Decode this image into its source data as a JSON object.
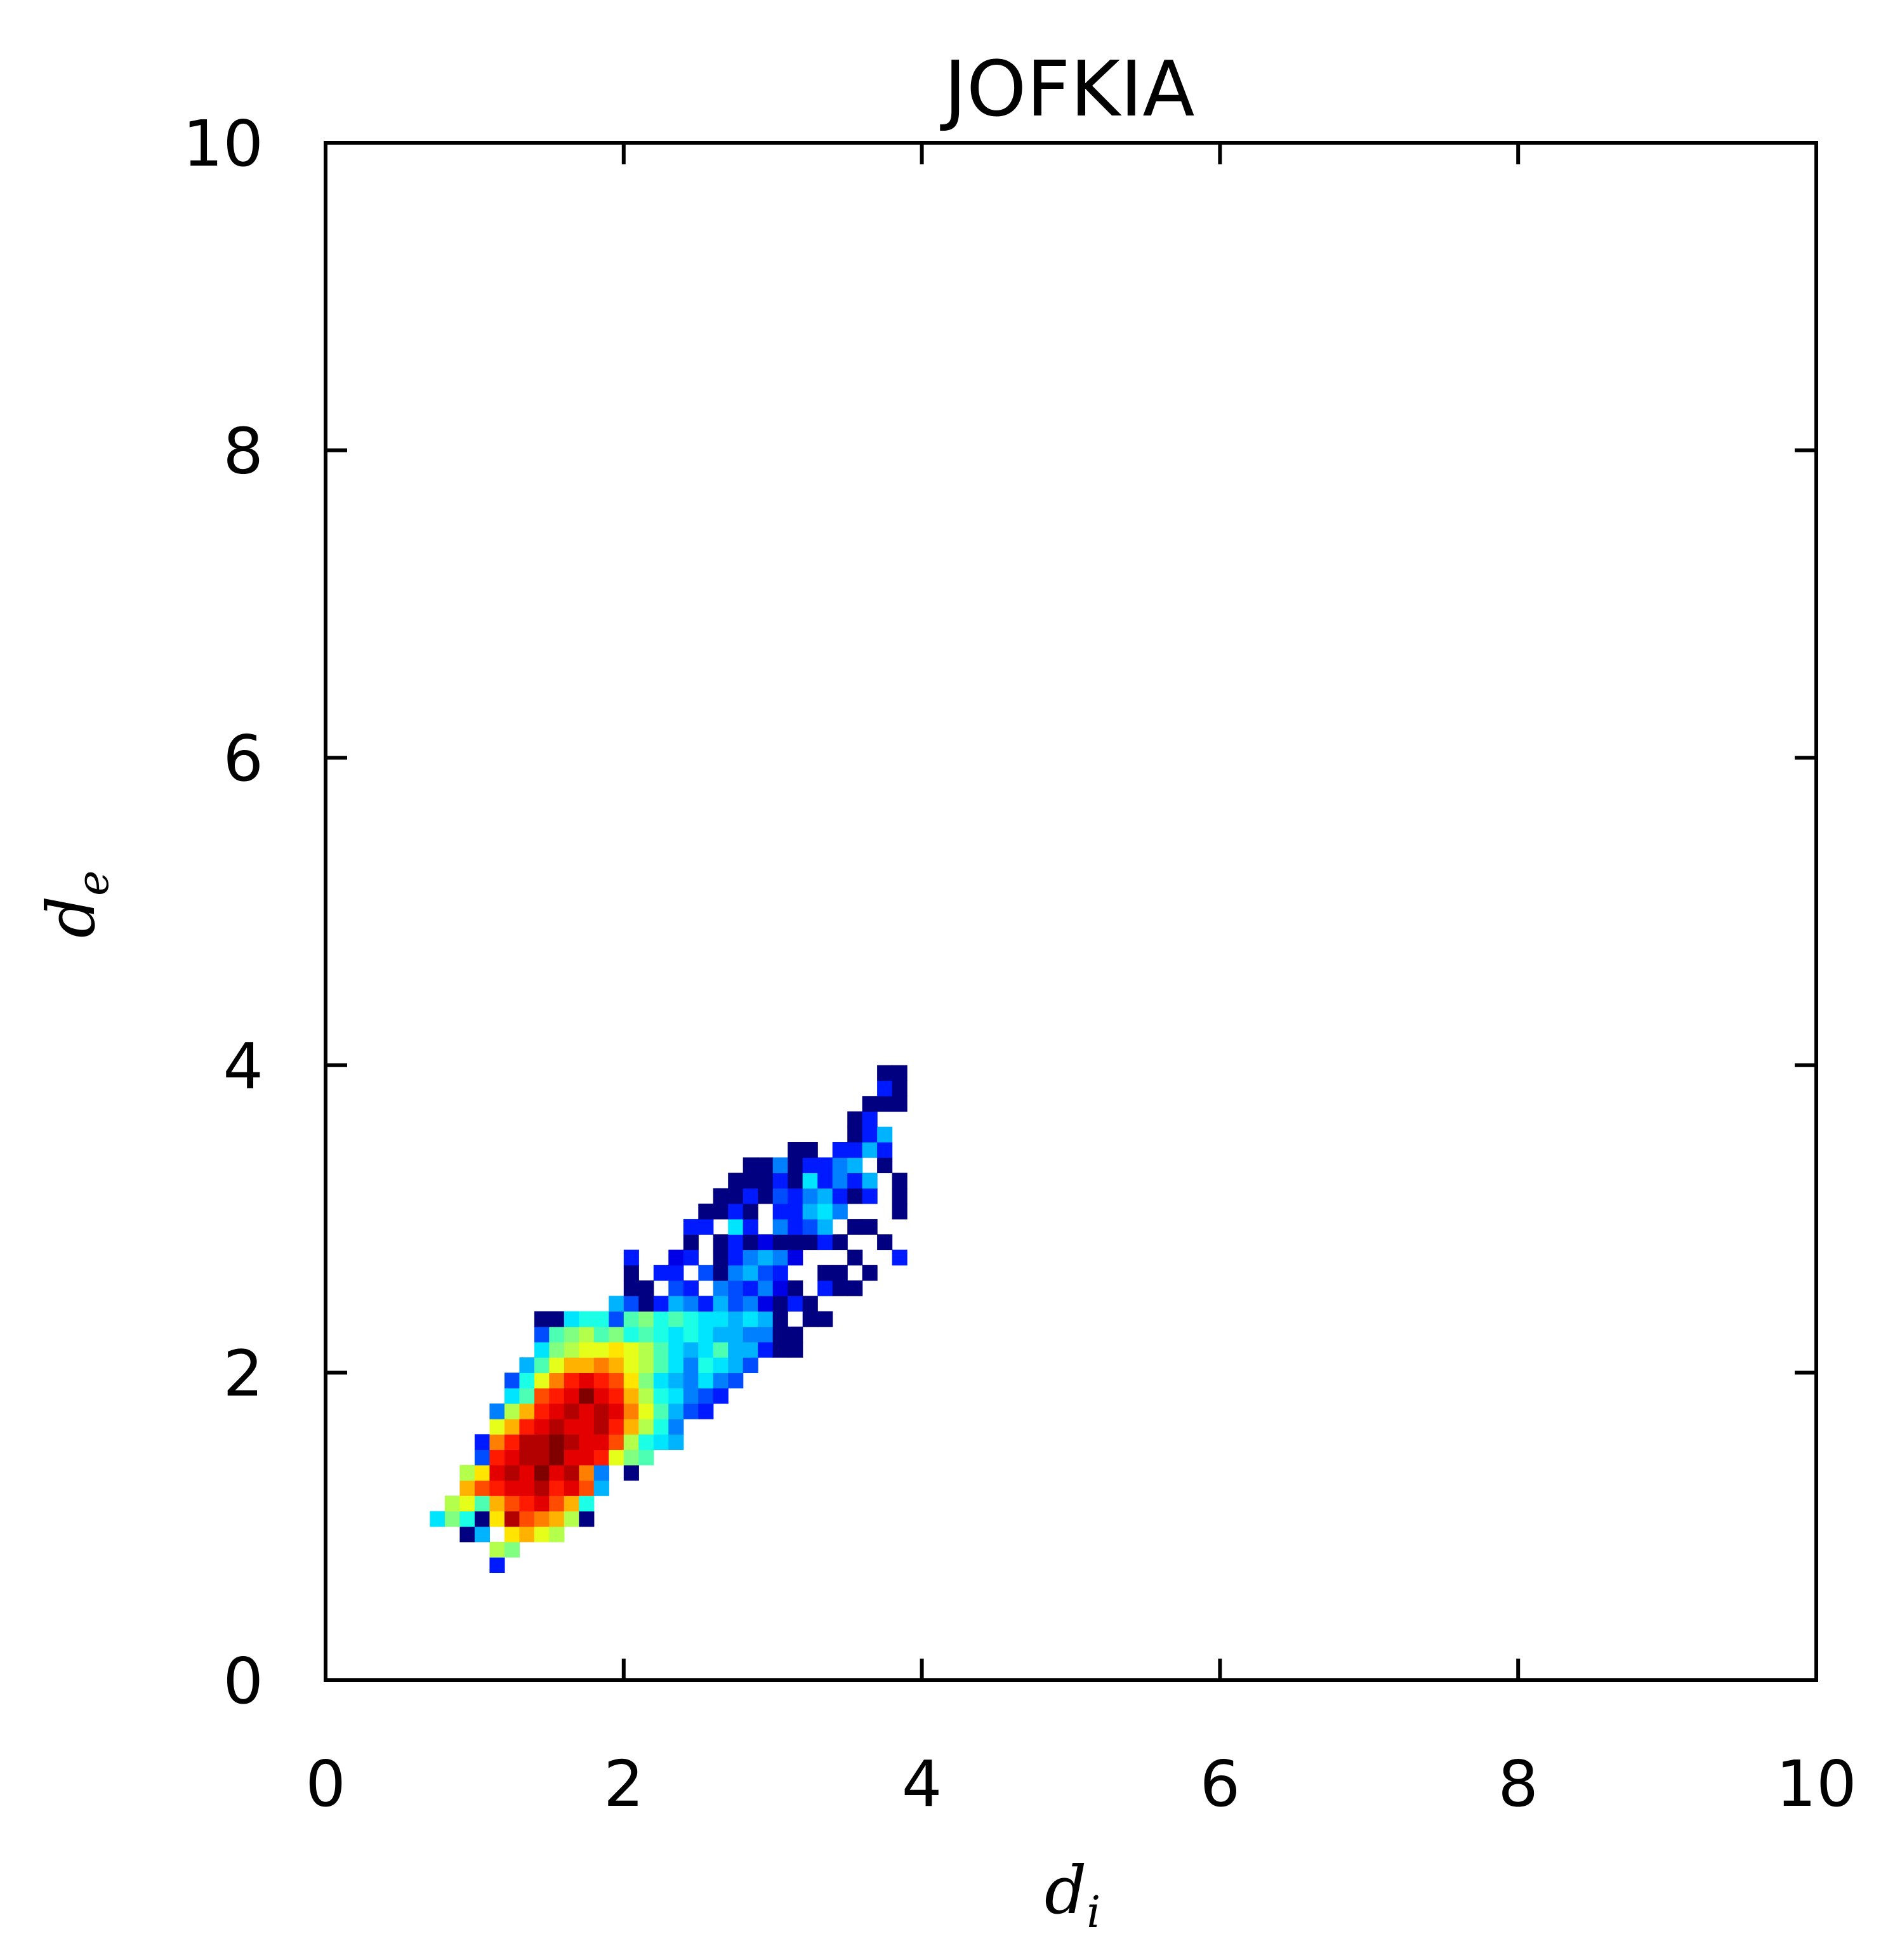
{
  "chart_data": {
    "type": "heatmap",
    "title": "JOFKIA",
    "xlabel": {
      "base": "d",
      "sub": "i"
    },
    "ylabel": {
      "base": "d",
      "sub": "e"
    },
    "xlim": [
      0,
      10
    ],
    "ylim": [
      0,
      10
    ],
    "xticks": [
      "0",
      "2",
      "4",
      "6",
      "8",
      "10"
    ],
    "yticks": [
      "0",
      "2",
      "4",
      "6",
      "8",
      "10"
    ],
    "grid": false,
    "colormap": "jet",
    "bin_size": 0.1,
    "cell_format": "[d_i, d_e, relative_density]",
    "cells": [
      [
        1.15,
        0.75,
        0.15
      ],
      [
        1.15,
        0.85,
        0.55
      ],
      [
        1.25,
        0.85,
        0.5
      ],
      [
        0.95,
        0.95,
        0.0
      ],
      [
        1.05,
        0.95,
        0.3
      ],
      [
        1.25,
        0.95,
        0.65
      ],
      [
        1.35,
        0.95,
        0.7
      ],
      [
        1.45,
        0.95,
        0.6
      ],
      [
        1.55,
        0.95,
        0.55
      ],
      [
        0.75,
        1.05,
        0.35
      ],
      [
        0.85,
        1.05,
        0.5
      ],
      [
        0.95,
        1.05,
        0.4
      ],
      [
        1.05,
        1.05,
        0.0
      ],
      [
        1.15,
        1.05,
        0.65
      ],
      [
        1.25,
        1.05,
        0.95
      ],
      [
        1.35,
        1.05,
        0.8
      ],
      [
        1.45,
        1.05,
        0.75
      ],
      [
        1.55,
        1.05,
        0.7
      ],
      [
        1.65,
        1.05,
        0.55
      ],
      [
        1.75,
        1.05,
        0.0
      ],
      [
        0.85,
        1.15,
        0.55
      ],
      [
        0.95,
        1.15,
        0.6
      ],
      [
        1.05,
        1.15,
        0.45
      ],
      [
        1.15,
        1.15,
        0.7
      ],
      [
        1.25,
        1.15,
        0.8
      ],
      [
        1.35,
        1.15,
        0.85
      ],
      [
        1.45,
        1.15,
        0.9
      ],
      [
        1.55,
        1.15,
        0.8
      ],
      [
        1.65,
        1.15,
        0.7
      ],
      [
        1.75,
        1.15,
        0.4
      ],
      [
        0.95,
        1.25,
        0.7
      ],
      [
        1.05,
        1.25,
        0.8
      ],
      [
        1.15,
        1.25,
        0.85
      ],
      [
        1.25,
        1.25,
        0.9
      ],
      [
        1.35,
        1.25,
        0.9
      ],
      [
        1.45,
        1.25,
        0.95
      ],
      [
        1.55,
        1.25,
        0.85
      ],
      [
        1.65,
        1.25,
        0.9
      ],
      [
        1.75,
        1.25,
        0.8
      ],
      [
        1.85,
        1.25,
        0.3
      ],
      [
        0.95,
        1.35,
        0.55
      ],
      [
        1.05,
        1.35,
        0.65
      ],
      [
        1.15,
        1.35,
        0.9
      ],
      [
        1.25,
        1.35,
        0.95
      ],
      [
        1.35,
        1.35,
        0.9
      ],
      [
        1.45,
        1.35,
        1.0
      ],
      [
        1.55,
        1.35,
        0.9
      ],
      [
        1.65,
        1.35,
        0.95
      ],
      [
        1.75,
        1.35,
        0.75
      ],
      [
        1.85,
        1.35,
        0.25
      ],
      [
        2.05,
        1.35,
        0.0
      ],
      [
        1.05,
        1.45,
        0.2
      ],
      [
        1.15,
        1.45,
        0.85
      ],
      [
        1.25,
        1.45,
        0.9
      ],
      [
        1.35,
        1.45,
        0.95
      ],
      [
        1.45,
        1.45,
        0.95
      ],
      [
        1.55,
        1.45,
        1.0
      ],
      [
        1.65,
        1.45,
        0.9
      ],
      [
        1.75,
        1.45,
        0.9
      ],
      [
        1.85,
        1.45,
        0.85
      ],
      [
        1.95,
        1.45,
        0.6
      ],
      [
        2.05,
        1.45,
        0.5
      ],
      [
        2.15,
        1.45,
        0.45
      ],
      [
        1.05,
        1.55,
        0.15
      ],
      [
        1.15,
        1.55,
        0.75
      ],
      [
        1.25,
        1.55,
        0.85
      ],
      [
        1.35,
        1.55,
        0.95
      ],
      [
        1.45,
        1.55,
        0.95
      ],
      [
        1.55,
        1.55,
        1.0
      ],
      [
        1.65,
        1.55,
        0.95
      ],
      [
        1.75,
        1.55,
        0.9
      ],
      [
        1.85,
        1.55,
        0.9
      ],
      [
        1.95,
        1.55,
        0.8
      ],
      [
        2.05,
        1.55,
        0.55
      ],
      [
        2.15,
        1.55,
        0.4
      ],
      [
        2.25,
        1.55,
        0.35
      ],
      [
        2.35,
        1.55,
        0.3
      ],
      [
        1.15,
        1.65,
        0.6
      ],
      [
        1.25,
        1.65,
        0.7
      ],
      [
        1.35,
        1.65,
        0.85
      ],
      [
        1.45,
        1.65,
        0.9
      ],
      [
        1.55,
        1.65,
        0.95
      ],
      [
        1.65,
        1.65,
        0.9
      ],
      [
        1.75,
        1.65,
        0.9
      ],
      [
        1.85,
        1.65,
        0.95
      ],
      [
        1.95,
        1.65,
        0.85
      ],
      [
        2.05,
        1.65,
        0.7
      ],
      [
        2.15,
        1.65,
        0.55
      ],
      [
        2.25,
        1.65,
        0.4
      ],
      [
        2.35,
        1.65,
        0.25
      ],
      [
        1.15,
        1.75,
        0.25
      ],
      [
        1.25,
        1.75,
        0.55
      ],
      [
        1.35,
        1.75,
        0.7
      ],
      [
        1.45,
        1.75,
        0.85
      ],
      [
        1.55,
        1.75,
        0.9
      ],
      [
        1.65,
        1.75,
        0.95
      ],
      [
        1.75,
        1.75,
        0.9
      ],
      [
        1.85,
        1.75,
        0.95
      ],
      [
        1.95,
        1.75,
        0.9
      ],
      [
        2.05,
        1.75,
        0.75
      ],
      [
        2.15,
        1.75,
        0.6
      ],
      [
        2.25,
        1.75,
        0.45
      ],
      [
        2.35,
        1.75,
        0.3
      ],
      [
        2.45,
        1.75,
        0.2
      ],
      [
        2.55,
        1.75,
        0.15
      ],
      [
        1.25,
        1.85,
        0.35
      ],
      [
        1.35,
        1.85,
        0.45
      ],
      [
        1.45,
        1.85,
        0.8
      ],
      [
        1.55,
        1.85,
        0.85
      ],
      [
        1.65,
        1.85,
        0.9
      ],
      [
        1.75,
        1.85,
        1.0
      ],
      [
        1.85,
        1.85,
        0.9
      ],
      [
        1.95,
        1.85,
        0.85
      ],
      [
        2.05,
        1.85,
        0.7
      ],
      [
        2.15,
        1.85,
        0.55
      ],
      [
        2.25,
        1.85,
        0.4
      ],
      [
        2.35,
        1.85,
        0.35
      ],
      [
        2.45,
        1.85,
        0.25
      ],
      [
        2.55,
        1.85,
        0.2
      ],
      [
        2.65,
        1.85,
        0.15
      ],
      [
        1.25,
        1.95,
        0.2
      ],
      [
        1.35,
        1.95,
        0.4
      ],
      [
        1.45,
        1.95,
        0.6
      ],
      [
        1.55,
        1.95,
        0.75
      ],
      [
        1.65,
        1.95,
        0.85
      ],
      [
        1.75,
        1.95,
        0.9
      ],
      [
        1.85,
        1.95,
        0.85
      ],
      [
        1.95,
        1.95,
        0.8
      ],
      [
        2.05,
        1.95,
        0.65
      ],
      [
        2.15,
        1.95,
        0.5
      ],
      [
        2.25,
        1.95,
        0.35
      ],
      [
        2.35,
        1.95,
        0.3
      ],
      [
        2.45,
        1.95,
        0.25
      ],
      [
        2.55,
        1.95,
        0.35
      ],
      [
        2.65,
        1.95,
        0.25
      ],
      [
        2.75,
        1.95,
        0.2
      ],
      [
        1.35,
        2.05,
        0.3
      ],
      [
        1.45,
        2.05,
        0.45
      ],
      [
        1.55,
        2.05,
        0.6
      ],
      [
        1.65,
        2.05,
        0.7
      ],
      [
        1.75,
        2.05,
        0.7
      ],
      [
        1.85,
        2.05,
        0.75
      ],
      [
        1.95,
        2.05,
        0.7
      ],
      [
        2.05,
        2.05,
        0.6
      ],
      [
        2.15,
        2.05,
        0.55
      ],
      [
        2.25,
        2.05,
        0.45
      ],
      [
        2.35,
        2.05,
        0.35
      ],
      [
        2.45,
        2.05,
        0.25
      ],
      [
        2.55,
        2.05,
        0.4
      ],
      [
        2.65,
        2.05,
        0.35
      ],
      [
        2.75,
        2.05,
        0.3
      ],
      [
        2.85,
        2.05,
        0.2
      ],
      [
        1.45,
        2.15,
        0.35
      ],
      [
        1.55,
        2.15,
        0.5
      ],
      [
        1.65,
        2.15,
        0.55
      ],
      [
        1.75,
        2.15,
        0.6
      ],
      [
        1.85,
        2.15,
        0.6
      ],
      [
        1.95,
        2.15,
        0.65
      ],
      [
        2.05,
        2.15,
        0.6
      ],
      [
        2.15,
        2.15,
        0.55
      ],
      [
        2.25,
        2.15,
        0.45
      ],
      [
        2.35,
        2.15,
        0.35
      ],
      [
        2.45,
        2.15,
        0.3
      ],
      [
        2.55,
        2.15,
        0.35
      ],
      [
        2.65,
        2.15,
        0.45
      ],
      [
        2.75,
        2.15,
        0.3
      ],
      [
        2.85,
        2.15,
        0.3
      ],
      [
        2.95,
        2.15,
        0.15
      ],
      [
        3.05,
        2.15,
        0.0
      ],
      [
        3.15,
        2.15,
        0.0
      ],
      [
        1.45,
        2.25,
        0.2
      ],
      [
        1.55,
        2.25,
        0.45
      ],
      [
        1.65,
        2.25,
        0.5
      ],
      [
        1.75,
        2.25,
        0.55
      ],
      [
        1.85,
        2.25,
        0.45
      ],
      [
        1.95,
        2.25,
        0.5
      ],
      [
        2.05,
        2.25,
        0.4
      ],
      [
        2.15,
        2.25,
        0.45
      ],
      [
        2.25,
        2.25,
        0.4
      ],
      [
        2.35,
        2.25,
        0.35
      ],
      [
        2.45,
        2.25,
        0.4
      ],
      [
        2.55,
        2.25,
        0.35
      ],
      [
        2.65,
        2.25,
        0.3
      ],
      [
        2.75,
        2.25,
        0.3
      ],
      [
        2.85,
        2.25,
        0.25
      ],
      [
        2.95,
        2.25,
        0.25
      ],
      [
        3.05,
        2.25,
        0.0
      ],
      [
        3.15,
        2.25,
        0.0
      ],
      [
        1.45,
        2.35,
        0.0
      ],
      [
        1.55,
        2.35,
        0.0
      ],
      [
        1.65,
        2.35,
        0.35
      ],
      [
        1.75,
        2.35,
        0.4
      ],
      [
        1.85,
        2.35,
        0.4
      ],
      [
        1.95,
        2.35,
        0.2
      ],
      [
        2.05,
        2.35,
        0.45
      ],
      [
        2.15,
        2.35,
        0.5
      ],
      [
        2.25,
        2.35,
        0.4
      ],
      [
        2.35,
        2.35,
        0.45
      ],
      [
        2.45,
        2.35,
        0.4
      ],
      [
        2.55,
        2.35,
        0.35
      ],
      [
        2.65,
        2.35,
        0.35
      ],
      [
        2.75,
        2.35,
        0.3
      ],
      [
        2.85,
        2.35,
        0.35
      ],
      [
        2.95,
        2.35,
        0.3
      ],
      [
        3.05,
        2.35,
        0.0
      ],
      [
        3.25,
        2.35,
        0.0
      ],
      [
        3.35,
        2.35,
        0.0
      ],
      [
        1.95,
        2.45,
        0.3
      ],
      [
        2.05,
        2.45,
        0.2
      ],
      [
        2.15,
        2.45,
        0.0
      ],
      [
        2.25,
        2.45,
        0.15
      ],
      [
        2.35,
        2.45,
        0.3
      ],
      [
        2.45,
        2.45,
        0.25
      ],
      [
        2.55,
        2.45,
        0.15
      ],
      [
        2.65,
        2.45,
        0.3
      ],
      [
        2.75,
        2.45,
        0.2
      ],
      [
        2.85,
        2.45,
        0.25
      ],
      [
        2.95,
        2.45,
        0.1
      ],
      [
        3.05,
        2.45,
        0.0
      ],
      [
        3.15,
        2.45,
        0.15
      ],
      [
        3.25,
        2.45,
        0.0
      ],
      [
        2.05,
        2.55,
        0.0
      ],
      [
        2.15,
        2.55,
        0.0
      ],
      [
        2.35,
        2.55,
        0.2
      ],
      [
        2.45,
        2.55,
        0.15
      ],
      [
        2.65,
        2.55,
        0.25
      ],
      [
        2.75,
        2.55,
        0.2
      ],
      [
        2.85,
        2.55,
        0.15
      ],
      [
        2.95,
        2.55,
        0.25
      ],
      [
        3.05,
        2.55,
        0.1
      ],
      [
        3.15,
        2.55,
        0.0
      ],
      [
        3.35,
        2.55,
        0.15
      ],
      [
        3.45,
        2.55,
        0.0
      ],
      [
        3.55,
        2.55,
        0.0
      ],
      [
        2.05,
        2.65,
        0.0
      ],
      [
        2.25,
        2.65,
        0.15
      ],
      [
        2.35,
        2.65,
        0.15
      ],
      [
        2.55,
        2.65,
        0.2
      ],
      [
        2.65,
        2.65,
        0.0
      ],
      [
        2.75,
        2.65,
        0.25
      ],
      [
        2.85,
        2.65,
        0.3
      ],
      [
        2.95,
        2.65,
        0.2
      ],
      [
        3.05,
        2.65,
        0.15
      ],
      [
        3.35,
        2.65,
        0.0
      ],
      [
        3.45,
        2.65,
        0.0
      ],
      [
        3.65,
        2.65,
        0.0
      ],
      [
        2.05,
        2.75,
        0.15
      ],
      [
        2.35,
        2.75,
        0.1
      ],
      [
        2.45,
        2.75,
        0.15
      ],
      [
        2.65,
        2.75,
        0.0
      ],
      [
        2.75,
        2.75,
        0.15
      ],
      [
        2.85,
        2.75,
        0.25
      ],
      [
        2.95,
        2.75,
        0.3
      ],
      [
        3.05,
        2.75,
        0.25
      ],
      [
        3.15,
        2.75,
        0.1
      ],
      [
        3.55,
        2.75,
        0.0
      ],
      [
        3.85,
        2.75,
        0.15
      ],
      [
        2.45,
        2.85,
        0.0
      ],
      [
        2.65,
        2.85,
        0.0
      ],
      [
        2.75,
        2.85,
        0.15
      ],
      [
        2.85,
        2.85,
        0.0
      ],
      [
        2.95,
        2.85,
        0.1
      ],
      [
        3.05,
        2.85,
        0.0
      ],
      [
        3.15,
        2.85,
        0.0
      ],
      [
        3.25,
        2.85,
        0.0
      ],
      [
        3.35,
        2.85,
        0.15
      ],
      [
        3.45,
        2.85,
        0.0
      ],
      [
        3.75,
        2.85,
        0.0
      ],
      [
        2.45,
        2.95,
        0.15
      ],
      [
        2.55,
        2.95,
        0.15
      ],
      [
        2.75,
        2.95,
        0.35
      ],
      [
        2.85,
        2.95,
        0.15
      ],
      [
        3.05,
        2.95,
        0.25
      ],
      [
        3.15,
        2.95,
        0.15
      ],
      [
        3.25,
        2.95,
        0.2
      ],
      [
        3.35,
        2.95,
        0.3
      ],
      [
        3.55,
        2.95,
        0.0
      ],
      [
        3.65,
        2.95,
        0.0
      ],
      [
        2.55,
        3.05,
        0.0
      ],
      [
        2.65,
        3.05,
        0.0
      ],
      [
        2.75,
        3.05,
        0.15
      ],
      [
        2.85,
        3.05,
        0.0
      ],
      [
        3.05,
        3.05,
        0.15
      ],
      [
        3.15,
        3.05,
        0.15
      ],
      [
        3.25,
        3.05,
        0.3
      ],
      [
        3.35,
        3.05,
        0.35
      ],
      [
        3.45,
        3.05,
        0.25
      ],
      [
        3.85,
        3.05,
        0.0
      ],
      [
        2.65,
        3.15,
        0.0
      ],
      [
        2.75,
        3.15,
        0.0
      ],
      [
        2.85,
        3.15,
        0.15
      ],
      [
        2.95,
        3.15,
        0.0
      ],
      [
        3.05,
        3.15,
        0.2
      ],
      [
        3.15,
        3.15,
        0.15
      ],
      [
        3.25,
        3.15,
        0.25
      ],
      [
        3.35,
        3.15,
        0.3
      ],
      [
        3.45,
        3.15,
        0.15
      ],
      [
        3.55,
        3.15,
        0.0
      ],
      [
        3.65,
        3.15,
        0.15
      ],
      [
        3.85,
        3.15,
        0.0
      ],
      [
        2.75,
        3.25,
        0.0
      ],
      [
        2.85,
        3.25,
        0.0
      ],
      [
        2.95,
        3.25,
        0.0
      ],
      [
        3.05,
        3.25,
        0.15
      ],
      [
        3.15,
        3.25,
        0.0
      ],
      [
        3.25,
        3.25,
        0.35
      ],
      [
        3.35,
        3.25,
        0.15
      ],
      [
        3.45,
        3.25,
        0.25
      ],
      [
        3.55,
        3.25,
        0.15
      ],
      [
        3.65,
        3.25,
        0.3
      ],
      [
        3.85,
        3.25,
        0.0
      ],
      [
        2.85,
        3.35,
        0.0
      ],
      [
        2.95,
        3.35,
        0.0
      ],
      [
        3.05,
        3.35,
        0.25
      ],
      [
        3.15,
        3.35,
        0.0
      ],
      [
        3.25,
        3.35,
        0.15
      ],
      [
        3.35,
        3.35,
        0.15
      ],
      [
        3.45,
        3.35,
        0.25
      ],
      [
        3.55,
        3.35,
        0.3
      ],
      [
        3.75,
        3.35,
        0.0
      ],
      [
        3.15,
        3.45,
        0.0
      ],
      [
        3.25,
        3.45,
        0.0
      ],
      [
        3.45,
        3.45,
        0.15
      ],
      [
        3.55,
        3.45,
        0.15
      ],
      [
        3.65,
        3.45,
        0.3
      ],
      [
        3.75,
        3.45,
        0.15
      ],
      [
        3.55,
        3.55,
        0.0
      ],
      [
        3.65,
        3.55,
        0.15
      ],
      [
        3.75,
        3.55,
        0.3
      ],
      [
        3.55,
        3.65,
        0.0
      ],
      [
        3.65,
        3.65,
        0.15
      ],
      [
        3.65,
        3.75,
        0.0
      ],
      [
        3.75,
        3.75,
        0.0
      ],
      [
        3.85,
        3.75,
        0.0
      ],
      [
        3.75,
        3.85,
        0.15
      ],
      [
        3.85,
        3.85,
        0.0
      ],
      [
        3.75,
        3.95,
        0.0
      ],
      [
        3.85,
        3.95,
        0.0
      ]
    ]
  }
}
